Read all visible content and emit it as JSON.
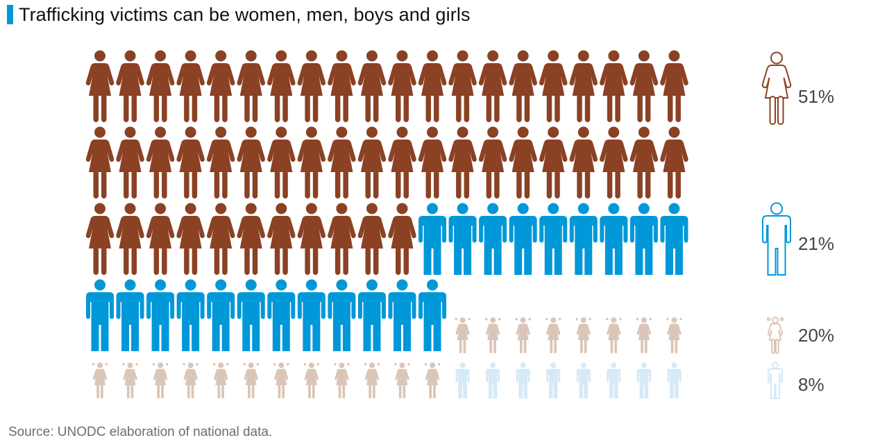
{
  "title": "Trafficking victims can be women, men, boys and girls",
  "source": "Source: UNODC elaboration of national data.",
  "chart_data": {
    "type": "pictogram",
    "categories": [
      "women",
      "men",
      "girls",
      "boys"
    ],
    "icons": [
      "woman-icon",
      "man-icon",
      "girl-icon",
      "boy-icon"
    ],
    "values": [
      51,
      21,
      20,
      8
    ],
    "labels": [
      "51%",
      "21%",
      "20%",
      "8%"
    ],
    "icon_counts": [
      51,
      21,
      20,
      8
    ],
    "colors": [
      "#8b4123",
      "#0098d8",
      "#d9c6b8",
      "#d6e9f7"
    ]
  }
}
